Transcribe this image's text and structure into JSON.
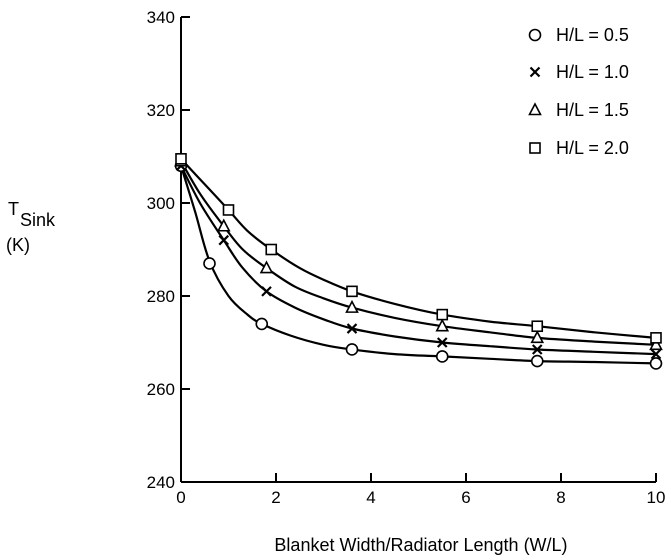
{
  "chart_data": {
    "type": "line",
    "xlabel": "Blanket Width/Radiator Length (W/L)",
    "ylabel": {
      "main": "T",
      "subscript": "Sink",
      "unit": "(K)"
    },
    "xlim": [
      0,
      10
    ],
    "ylim": [
      240,
      340
    ],
    "xticks": [
      0,
      2,
      4,
      6,
      8,
      10
    ],
    "yticks": [
      240,
      260,
      280,
      300,
      320,
      340
    ],
    "grid": false,
    "legend_position": "top-right",
    "series": [
      {
        "name": "H/L = 0.5",
        "marker": "circle",
        "points": [
          [
            0,
            308
          ],
          [
            0.6,
            287
          ],
          [
            1.7,
            274
          ],
          [
            3.6,
            268.5
          ],
          [
            5.5,
            267
          ],
          [
            7.5,
            266
          ],
          [
            10,
            265.5
          ]
        ],
        "curve": [
          [
            0,
            308
          ],
          [
            0.3,
            298
          ],
          [
            0.6,
            287.5
          ],
          [
            1.0,
            280
          ],
          [
            1.4,
            276
          ],
          [
            1.7,
            274
          ],
          [
            2.3,
            271.5
          ],
          [
            3.0,
            269.5
          ],
          [
            3.6,
            268.5
          ],
          [
            4.5,
            267.5
          ],
          [
            5.5,
            267
          ],
          [
            6.5,
            266.5
          ],
          [
            7.5,
            266
          ],
          [
            8.7,
            265.8
          ],
          [
            10,
            265.5
          ]
        ]
      },
      {
        "name": "H/L = 1.0",
        "marker": "x",
        "points": [
          [
            0,
            308
          ],
          [
            0.9,
            292
          ],
          [
            1.8,
            281
          ],
          [
            3.6,
            273
          ],
          [
            5.5,
            270
          ],
          [
            7.5,
            268.5
          ],
          [
            10,
            267.5
          ]
        ],
        "curve": [
          [
            0,
            308
          ],
          [
            0.4,
            300
          ],
          [
            0.9,
            292
          ],
          [
            1.3,
            286
          ],
          [
            1.8,
            281
          ],
          [
            2.4,
            277.5
          ],
          [
            3.0,
            275
          ],
          [
            3.6,
            273
          ],
          [
            4.5,
            271.3
          ],
          [
            5.5,
            270
          ],
          [
            6.5,
            269.2
          ],
          [
            7.5,
            268.5
          ],
          [
            8.7,
            268
          ],
          [
            10,
            267.5
          ]
        ]
      },
      {
        "name": "H/L = 1.5",
        "marker": "triangle",
        "points": [
          [
            0,
            309
          ],
          [
            0.9,
            295
          ],
          [
            1.8,
            286
          ],
          [
            3.6,
            277.5
          ],
          [
            5.5,
            273.5
          ],
          [
            7.5,
            271
          ],
          [
            10,
            269.5
          ]
        ],
        "curve": [
          [
            0,
            309
          ],
          [
            0.4,
            302
          ],
          [
            0.9,
            295
          ],
          [
            1.3,
            290
          ],
          [
            1.8,
            286
          ],
          [
            2.4,
            282
          ],
          [
            3.0,
            279.5
          ],
          [
            3.6,
            277.5
          ],
          [
            4.5,
            275.3
          ],
          [
            5.5,
            273.5
          ],
          [
            6.5,
            272.2
          ],
          [
            7.5,
            271
          ],
          [
            8.7,
            270.2
          ],
          [
            10,
            269.5
          ]
        ]
      },
      {
        "name": "H/L = 2.0",
        "marker": "square",
        "points": [
          [
            0,
            309.5
          ],
          [
            1.0,
            298.5
          ],
          [
            1.9,
            290
          ],
          [
            3.6,
            281
          ],
          [
            5.5,
            276
          ],
          [
            7.5,
            273.5
          ],
          [
            10,
            271
          ]
        ],
        "curve": [
          [
            0,
            309.5
          ],
          [
            0.5,
            304
          ],
          [
            1.0,
            298.5
          ],
          [
            1.4,
            294
          ],
          [
            1.9,
            290
          ],
          [
            2.5,
            286
          ],
          [
            3.0,
            283.5
          ],
          [
            3.6,
            281
          ],
          [
            4.5,
            278.3
          ],
          [
            5.5,
            276
          ],
          [
            6.5,
            274.5
          ],
          [
            7.5,
            273.5
          ],
          [
            8.7,
            272.2
          ],
          [
            10,
            271
          ]
        ]
      }
    ]
  }
}
